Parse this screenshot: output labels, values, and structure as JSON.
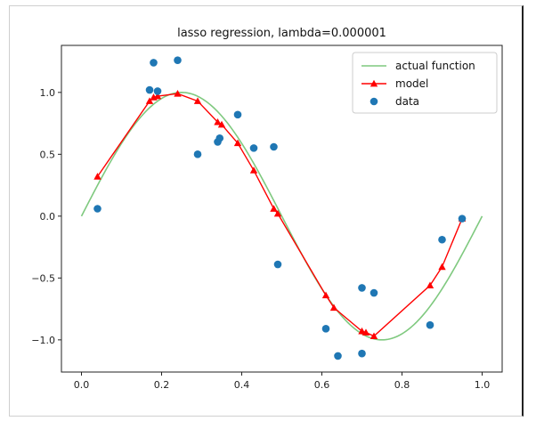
{
  "chart_data": {
    "type": "line",
    "title": "lasso regression, lambda=0.000001",
    "xlabel": "",
    "ylabel": "",
    "xlim": [
      -0.05,
      1.05
    ],
    "ylim": [
      -1.26,
      1.38
    ],
    "x_ticks": [
      {
        "value": 0.0,
        "label": "0.0"
      },
      {
        "value": 0.2,
        "label": "0.2"
      },
      {
        "value": 0.4,
        "label": "0.4"
      },
      {
        "value": 0.6,
        "label": "0.6"
      },
      {
        "value": 0.8,
        "label": "0.8"
      },
      {
        "value": 1.0,
        "label": "1.0"
      }
    ],
    "y_ticks": [
      {
        "value": -1.0,
        "label": "−1.0"
      },
      {
        "value": -0.5,
        "label": "−0.5"
      },
      {
        "value": 0.0,
        "label": "0.0"
      },
      {
        "value": 0.5,
        "label": "0.5"
      },
      {
        "value": 1.0,
        "label": "1.0"
      }
    ],
    "legend_position": "top-right",
    "grid": false,
    "series": [
      {
        "name": "actual function",
        "kind": "line",
        "color": "#7fc97f",
        "function": "sin(2*pi*x)",
        "x_range": [
          0.0,
          1.0
        ]
      },
      {
        "name": "model",
        "kind": "line-markers",
        "color": "#ff0000",
        "marker": "triangle",
        "points": [
          [
            0.04,
            0.32
          ],
          [
            0.17,
            0.93
          ],
          [
            0.18,
            0.96
          ],
          [
            0.19,
            0.97
          ],
          [
            0.24,
            0.99
          ],
          [
            0.29,
            0.93
          ],
          [
            0.34,
            0.76
          ],
          [
            0.35,
            0.74
          ],
          [
            0.39,
            0.59
          ],
          [
            0.43,
            0.37
          ],
          [
            0.48,
            0.06
          ],
          [
            0.49,
            0.02
          ],
          [
            0.61,
            -0.64
          ],
          [
            0.63,
            -0.74
          ],
          [
            0.7,
            -0.93
          ],
          [
            0.71,
            -0.94
          ],
          [
            0.73,
            -0.97
          ],
          [
            0.87,
            -0.56
          ],
          [
            0.9,
            -0.41
          ],
          [
            0.95,
            -0.02
          ]
        ]
      },
      {
        "name": "data",
        "kind": "scatter",
        "color": "#1f77b4",
        "points": [
          [
            0.04,
            0.06
          ],
          [
            0.17,
            1.02
          ],
          [
            0.18,
            1.24
          ],
          [
            0.19,
            1.01
          ],
          [
            0.24,
            1.26
          ],
          [
            0.29,
            0.5
          ],
          [
            0.34,
            0.6
          ],
          [
            0.345,
            0.63
          ],
          [
            0.39,
            0.82
          ],
          [
            0.43,
            0.55
          ],
          [
            0.48,
            0.56
          ],
          [
            0.49,
            -0.39
          ],
          [
            0.61,
            -0.91
          ],
          [
            0.64,
            -1.13
          ],
          [
            0.7,
            -1.11
          ],
          [
            0.7,
            -0.58
          ],
          [
            0.73,
            -0.62
          ],
          [
            0.87,
            -0.88
          ],
          [
            0.9,
            -0.19
          ],
          [
            0.95,
            -0.02
          ]
        ]
      }
    ]
  }
}
